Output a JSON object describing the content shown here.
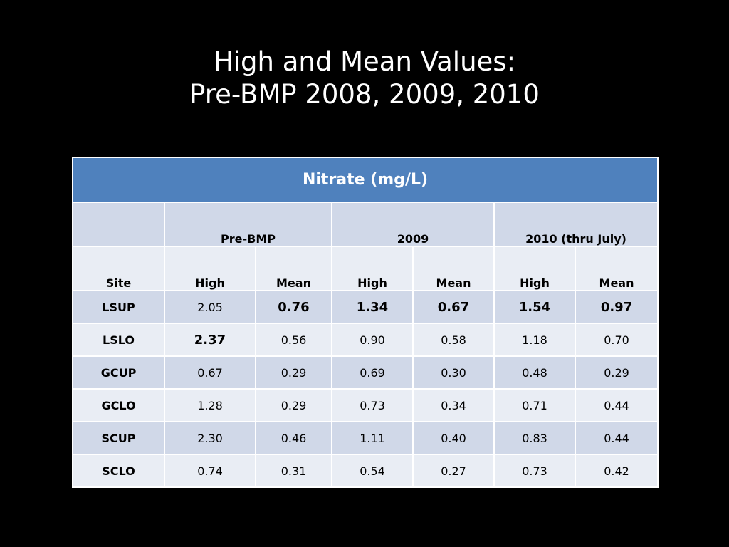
{
  "slide": {
    "title_line1": "High and Mean Values:",
    "title_line2": "Pre-BMP 2008, 2009, 2010"
  },
  "table": {
    "caption": "Nitrate (mg/L)",
    "groups": [
      "Pre-BMP",
      "2009",
      "2010 (thru July)"
    ],
    "subheaders": [
      "Site",
      "High",
      "Mean",
      "High",
      "Mean",
      "High",
      "Mean"
    ],
    "rows": [
      {
        "site": "LSUP",
        "values": [
          "2.05",
          "0.76",
          "1.34",
          "0.67",
          "1.54",
          "0.97"
        ]
      },
      {
        "site": "LSLO",
        "values": [
          "2.37",
          "0.56",
          "0.90",
          "0.58",
          "1.18",
          "0.70"
        ]
      },
      {
        "site": "GCUP",
        "values": [
          "0.67",
          "0.29",
          "0.69",
          "0.30",
          "0.48",
          "0.29"
        ]
      },
      {
        "site": "GCLO",
        "values": [
          "1.28",
          "0.29",
          "0.73",
          "0.34",
          "0.71",
          "0.44"
        ]
      },
      {
        "site": "SCUP",
        "values": [
          "2.30",
          "0.46",
          "1.11",
          "0.40",
          "0.83",
          "0.44"
        ]
      },
      {
        "site": "SCLO",
        "values": [
          "0.74",
          "0.31",
          "0.54",
          "0.27",
          "0.73",
          "0.42"
        ]
      }
    ],
    "emphasized_cells": [
      {
        "row": 0,
        "col": 1
      },
      {
        "row": 0,
        "col": 2
      },
      {
        "row": 0,
        "col": 3
      },
      {
        "row": 0,
        "col": 4
      },
      {
        "row": 0,
        "col": 5
      },
      {
        "row": 1,
        "col": 0
      }
    ],
    "colors": {
      "header": "#4f81bd",
      "band_dark": "#d0d8e8",
      "band_light": "#e9edf4"
    }
  }
}
